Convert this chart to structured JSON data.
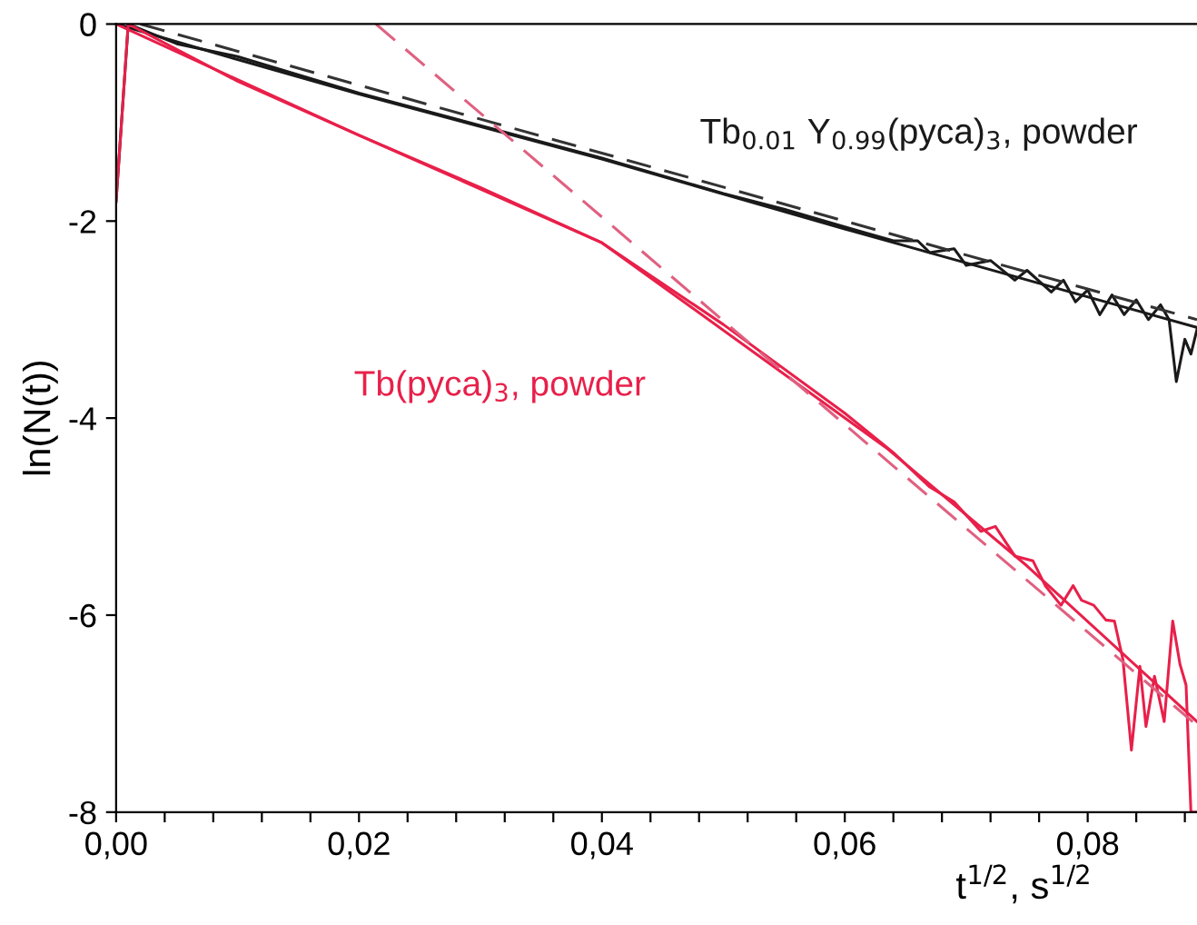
{
  "chart_data": {
    "type": "line",
    "xlabel": "t$^{1/2}$, s$^{1/2}$",
    "ylabel": "ln(N(t))",
    "xlim": [
      0,
      0.089
    ],
    "ylim": [
      -8,
      0
    ],
    "xticks": [
      {
        "value": 0,
        "label": "0,00"
      },
      {
        "value": 0.004,
        "label": null
      },
      {
        "value": 0.008,
        "label": null
      },
      {
        "value": 0.012,
        "label": null
      },
      {
        "value": 0.016,
        "label": null
      },
      {
        "value": 0.02,
        "label": "0,02"
      },
      {
        "value": 0.024,
        "label": null
      },
      {
        "value": 0.028,
        "label": null
      },
      {
        "value": 0.032,
        "label": null
      },
      {
        "value": 0.036,
        "label": null
      },
      {
        "value": 0.04,
        "label": "0,04"
      },
      {
        "value": 0.044,
        "label": null
      },
      {
        "value": 0.048,
        "label": null
      },
      {
        "value": 0.052,
        "label": null
      },
      {
        "value": 0.056,
        "label": null
      },
      {
        "value": 0.06,
        "label": "0,06"
      },
      {
        "value": 0.064,
        "label": null
      },
      {
        "value": 0.068,
        "label": null
      },
      {
        "value": 0.072,
        "label": null
      },
      {
        "value": 0.076,
        "label": null
      },
      {
        "value": 0.08,
        "label": "0,08"
      },
      {
        "value": 0.084,
        "label": null
      },
      {
        "value": 0.088,
        "label": null
      }
    ],
    "yticks": [
      0,
      -2,
      -4,
      -6,
      -8
    ],
    "grid": false,
    "legend": false,
    "marker": "none",
    "series": [
      {
        "name": "Tb$_{0.01}$ Y$_{0.99}$(pyca)$_{3}$, powder",
        "color": "#1a1a1a",
        "line_style": "solid",
        "x": [
          0,
          0.001,
          0.003,
          0.005,
          0.01,
          0.02,
          0.03,
          0.04,
          0.05,
          0.055,
          0.06,
          0.064,
          0.066,
          0.067,
          0.069,
          0.07,
          0.072,
          0.074,
          0.075,
          0.077,
          0.078,
          0.079,
          0.08,
          0.081,
          0.082,
          0.083,
          0.084,
          0.085,
          0.086,
          0.0867,
          0.0873,
          0.088,
          0.0885,
          0.089
        ],
        "values": [
          -1.8,
          0,
          -0.1,
          -0.2,
          -0.33,
          -0.7,
          -1.03,
          -1.36,
          -1.72,
          -1.88,
          -2.06,
          -2.2,
          -2.2,
          -2.32,
          -2.28,
          -2.45,
          -2.4,
          -2.6,
          -2.5,
          -2.72,
          -2.6,
          -2.82,
          -2.7,
          -2.95,
          -2.75,
          -2.95,
          -2.8,
          -3.0,
          -2.85,
          -3.0,
          -3.63,
          -3.2,
          -3.35,
          -3.1
        ]
      },
      {
        "color": "#1a1a1a",
        "line_style": "solid",
        "x": [
          0,
          0.01,
          0.02,
          0.04,
          0.06,
          0.089
        ],
        "values": [
          0,
          -0.36,
          -0.71,
          -1.37,
          -2.08,
          -3.08
        ]
      },
      {
        "color": "#333333",
        "line_style": "dashed",
        "x": [
          0.002,
          0.089
        ],
        "values": [
          0,
          -3.0
        ]
      },
      {
        "name": "Tb(pyca)$_{3}$, powder",
        "color": "#e8204a",
        "line_style": "solid",
        "x": [
          0,
          0.001,
          0.01,
          0.02,
          0.03,
          0.04,
          0.05,
          0.06,
          0.064,
          0.067,
          0.069,
          0.0712,
          0.0724,
          0.074,
          0.0755,
          0.0765,
          0.0778,
          0.0788,
          0.0795,
          0.0805,
          0.0815,
          0.0822,
          0.0829,
          0.0836,
          0.0843,
          0.0848,
          0.0855,
          0.0863,
          0.087,
          0.0876,
          0.0881,
          0.0885,
          0.089
        ],
        "values": [
          -1.8,
          0,
          -0.58,
          -1.13,
          -1.66,
          -2.22,
          -3.05,
          -3.95,
          -4.35,
          -4.7,
          -4.85,
          -5.15,
          -5.1,
          -5.4,
          -5.45,
          -5.7,
          -5.9,
          -5.7,
          -5.85,
          -5.9,
          -6.05,
          -6.06,
          -6.45,
          -7.37,
          -6.52,
          -7.13,
          -6.62,
          -7.08,
          -6.06,
          -6.5,
          -6.71,
          -8.0,
          -8.0
        ]
      },
      {
        "color": "#e8204a",
        "line_style": "solid",
        "x": [
          0,
          0.02,
          0.04,
          0.0634,
          0.075,
          0.089
        ],
        "values": [
          0,
          -1.13,
          -2.22,
          -4.3,
          -5.5,
          -7.08
        ]
      },
      {
        "color": "#e06080",
        "line_style": "dashed",
        "x": [
          0.0214,
          0.089
        ],
        "values": [
          0,
          -7.12
        ]
      }
    ]
  }
}
